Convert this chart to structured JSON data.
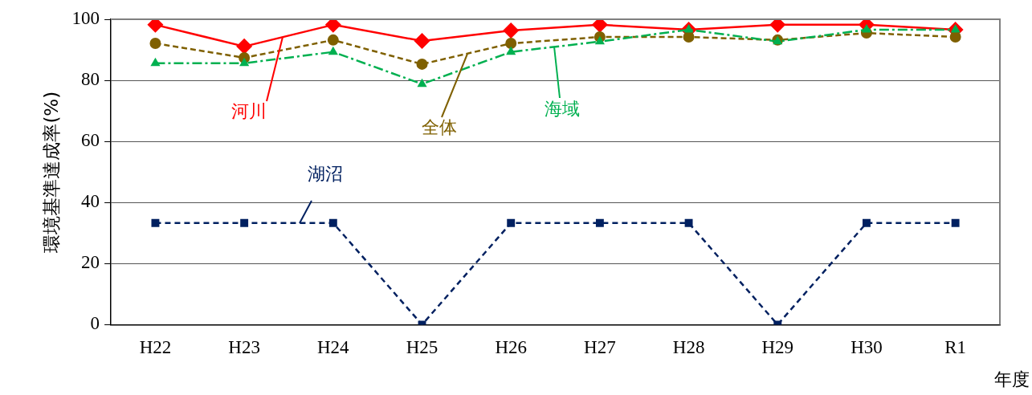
{
  "chart_data": {
    "type": "line",
    "xlabel": "年度",
    "ylabel": "環境基準達成率(%)",
    "categories": [
      "H22",
      "H23",
      "H24",
      "H25",
      "H26",
      "H27",
      "H28",
      "H29",
      "H30",
      "R1"
    ],
    "series": [
      {
        "name": "河川",
        "color": "#ff0000",
        "marker": "diamond",
        "line_style": "solid",
        "values": [
          98.2,
          91.1,
          98.2,
          92.9,
          96.3,
          98.2,
          96.6,
          98.2,
          98.2,
          96.6
        ]
      },
      {
        "name": "全体",
        "color": "#7f6000",
        "marker": "circle",
        "line_style": "dashed",
        "values": [
          92.1,
          87.4,
          93.2,
          85.3,
          92.1,
          94.2,
          94.2,
          93.2,
          95.5,
          94.2
        ]
      },
      {
        "name": "海域",
        "color": "#00b050",
        "marker": "triangle",
        "line_style": "dashed",
        "values": [
          85.6,
          85.6,
          89.3,
          78.8,
          89.3,
          92.7,
          96.6,
          92.7,
          96.6,
          96.6
        ]
      },
      {
        "name": "湖沼",
        "color": "#002060",
        "marker": "square",
        "line_style": "dashed",
        "values": [
          33.3,
          33.3,
          33.3,
          0,
          33.3,
          33.3,
          33.3,
          0,
          33.3,
          33.3
        ]
      }
    ],
    "ylim": [
      0,
      100
    ],
    "yticks": [
      0,
      20,
      40,
      60,
      80,
      100
    ],
    "grid": "y",
    "legend": false
  }
}
